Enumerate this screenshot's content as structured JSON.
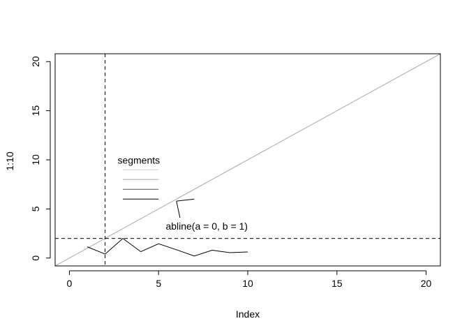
{
  "chart_data": {
    "type": "line",
    "title": "",
    "xlabel": "Index",
    "ylabel": "1:10",
    "xlim": [
      -0.8,
      20.8
    ],
    "ylim": [
      -0.8,
      20.8
    ],
    "x_ticks": [
      0,
      5,
      10,
      15,
      20
    ],
    "y_ticks": [
      0,
      5,
      10,
      15,
      20
    ],
    "grid": false,
    "series": [
      {
        "color": "#000000",
        "x": [
          1,
          2,
          3,
          4,
          5,
          6,
          7,
          8,
          9,
          10
        ],
        "values": [
          1.15,
          0.4,
          2.0,
          0.65,
          1.45,
          0.85,
          0.2,
          0.8,
          0.55,
          0.62
        ]
      }
    ],
    "abline": {
      "a": 0,
      "b": 1,
      "color": "#aaaaaa"
    },
    "hline": {
      "y": 2,
      "style": "dashed"
    },
    "vline": {
      "x": 2,
      "style": "dashed"
    },
    "segments": [
      {
        "x0": 3.0,
        "x1": 5.0,
        "y": 9.0,
        "color": "#cccccc"
      },
      {
        "x0": 3.0,
        "x1": 5.0,
        "y": 8.0,
        "color": "#aaaaaa"
      },
      {
        "x0": 3.0,
        "x1": 5.0,
        "y": 7.0,
        "color": "#555555"
      },
      {
        "x0": 3.0,
        "x1": 5.0,
        "y": 6.0,
        "color": "#000000"
      }
    ],
    "annotations": [
      {
        "text": "segments",
        "x": 2.7,
        "y": 9.6
      },
      {
        "text": "abline(a = 0, b = 1)",
        "x": 5.4,
        "y": 2.9
      }
    ],
    "arrow": {
      "from": [
        6.2,
        4.1
      ],
      "to": [
        6.0,
        5.8
      ],
      "head_tip_x": 7.0,
      "head_tip_y": 6.0
    }
  }
}
